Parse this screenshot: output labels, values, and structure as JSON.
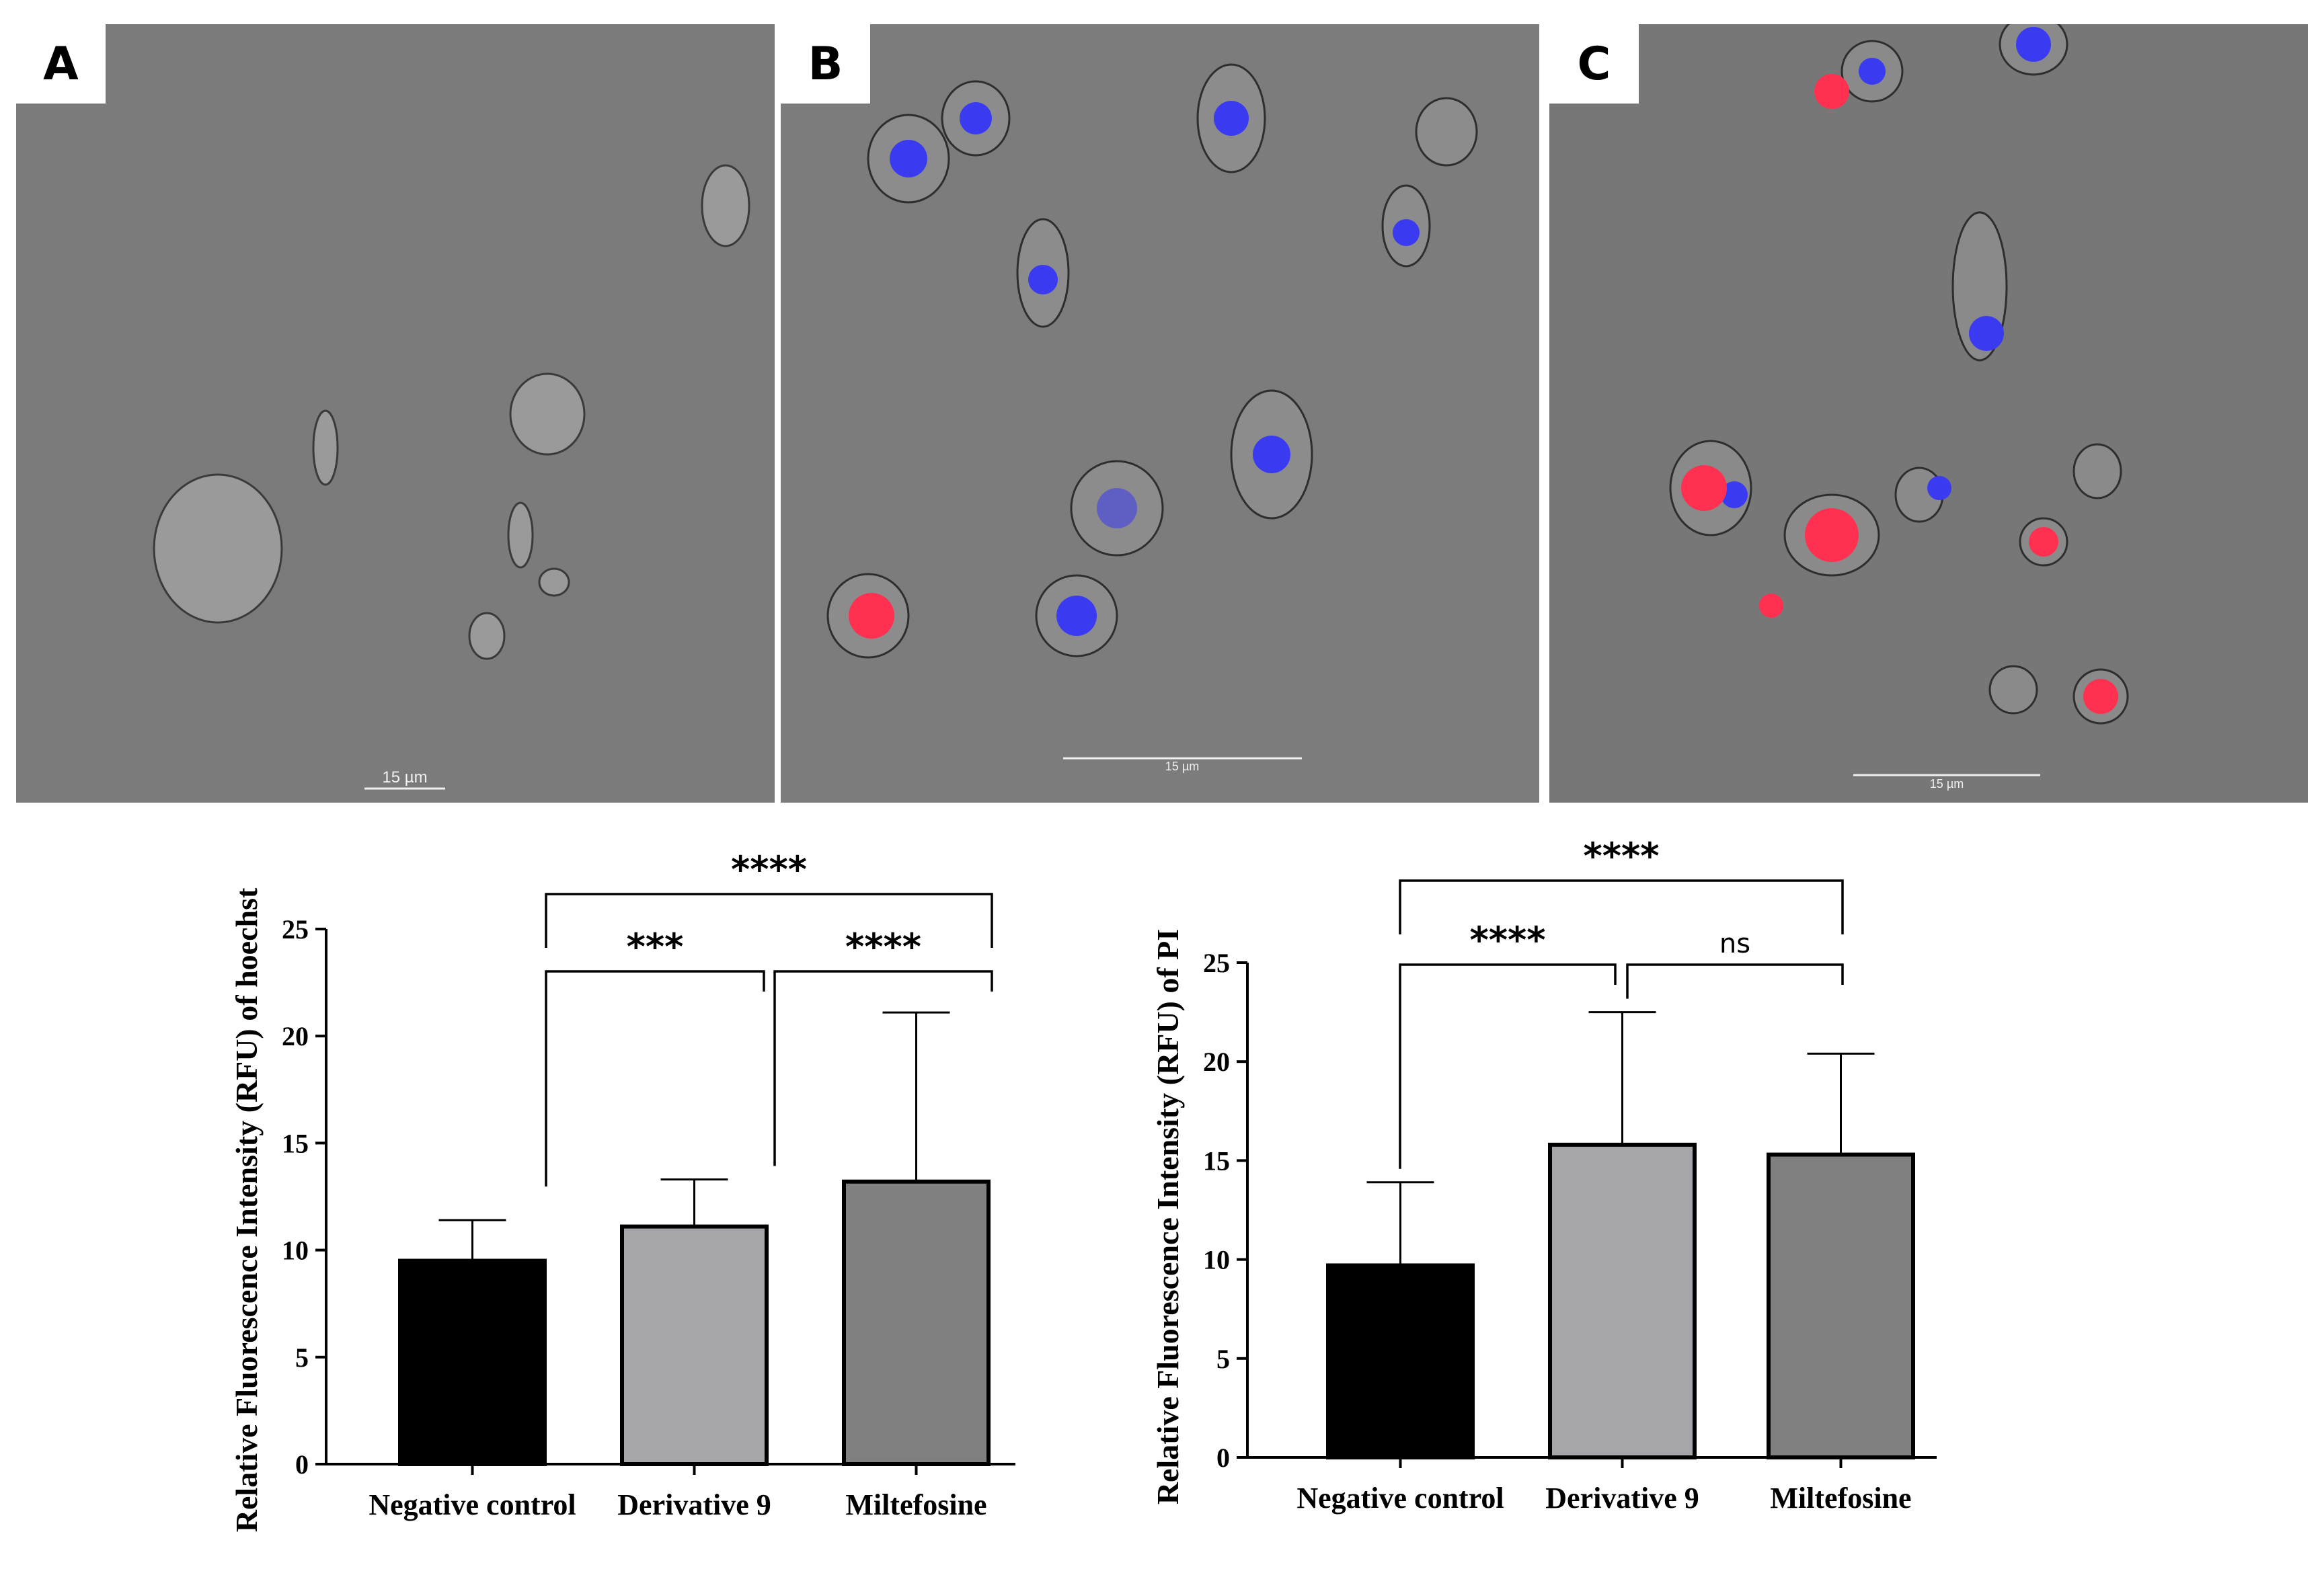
{
  "panels": [
    {
      "label": "A",
      "scale_bar": "15 µm"
    },
    {
      "label": "B",
      "scale_bar": "15 µm"
    },
    {
      "label": "C",
      "scale_bar": "15 µm"
    }
  ],
  "colors": {
    "negative_control": "#000000",
    "derivative_9": "#a6a5aa",
    "miltefosine": "#808080",
    "hoechst_blue": "#3a3af0",
    "pi_red": "#ff3050"
  },
  "chart_data": [
    {
      "type": "bar",
      "categories": [
        "Negative control",
        "Derivative 9",
        "Miltefosine"
      ],
      "values": [
        9.5,
        11.1,
        13.2
      ],
      "error_upper": [
        11.4,
        13.3,
        21.1
      ],
      "ylabel": "Relative Fluorescence Intensity (RFU) of hoechst",
      "ylim": [
        0,
        25
      ],
      "yticks": [
        "0",
        "5",
        "10",
        "15",
        "20",
        "25"
      ],
      "significance": [
        {
          "from": 0,
          "to": 1,
          "label": "***"
        },
        {
          "from": 1,
          "to": 2,
          "label": "****"
        },
        {
          "from": 0,
          "to": 2,
          "label": "****"
        }
      ]
    },
    {
      "type": "bar",
      "categories": [
        "Negative control",
        "Derivative 9",
        "Miltefosine"
      ],
      "values": [
        9.7,
        15.8,
        15.3
      ],
      "error_upper": [
        13.9,
        22.5,
        20.4
      ],
      "ylabel": "Relative Fluorescence Intensity (RFU) of PI",
      "ylim": [
        0,
        25
      ],
      "yticks": [
        "0",
        "5",
        "10",
        "15",
        "20",
        "25"
      ],
      "significance": [
        {
          "from": 0,
          "to": 1,
          "label": "****"
        },
        {
          "from": 1,
          "to": 2,
          "label": "ns"
        },
        {
          "from": 0,
          "to": 2,
          "label": "****"
        }
      ]
    }
  ]
}
